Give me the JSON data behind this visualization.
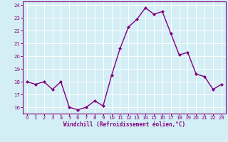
{
  "x": [
    0,
    1,
    2,
    3,
    4,
    5,
    6,
    7,
    8,
    9,
    10,
    11,
    12,
    13,
    14,
    15,
    16,
    17,
    18,
    19,
    20,
    21,
    22,
    23
  ],
  "y": [
    18.0,
    17.8,
    18.0,
    17.4,
    18.0,
    16.0,
    15.8,
    16.0,
    16.5,
    16.1,
    18.5,
    20.6,
    22.3,
    22.9,
    23.8,
    23.3,
    23.5,
    21.8,
    20.1,
    20.3,
    18.6,
    18.4,
    17.4,
    17.8
  ],
  "line_color": "#800080",
  "marker": "D",
  "marker_size": 2,
  "linewidth": 1.0,
  "ylim": [
    15.5,
    24.3
  ],
  "yticks": [
    16,
    17,
    18,
    19,
    20,
    21,
    22,
    23,
    24
  ],
  "xticks": [
    0,
    1,
    2,
    3,
    4,
    5,
    6,
    7,
    8,
    9,
    10,
    11,
    12,
    13,
    14,
    15,
    16,
    17,
    18,
    19,
    20,
    21,
    22,
    23
  ],
  "xlabel": "Windchill (Refroidissement éolien,°C)",
  "background_color": "#d4eef5",
  "grid_color": "#ffffff",
  "tick_label_color": "#800080",
  "axis_label_color": "#800080",
  "spine_color": "#800080"
}
